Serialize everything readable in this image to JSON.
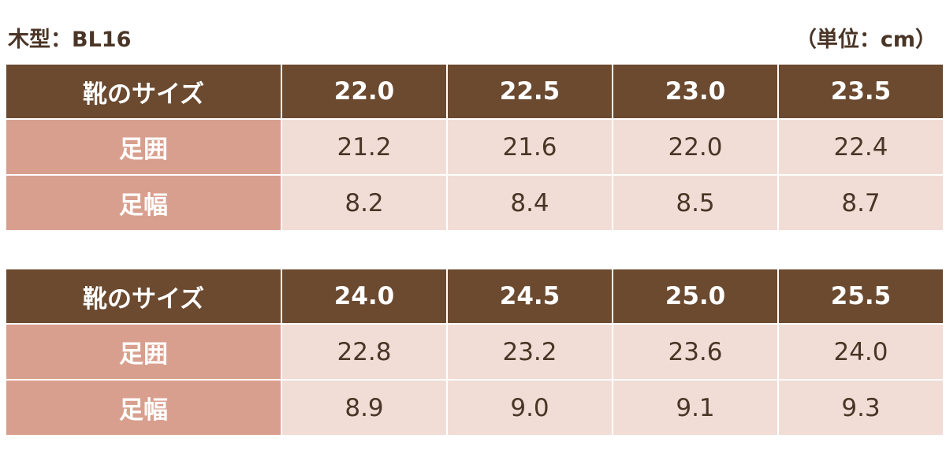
{
  "header": {
    "title": "木型：BL16",
    "unit": "（単位：cm）"
  },
  "colors": {
    "header_bg": "#6b4a30",
    "label_bg": "#d99f8e",
    "cell_bg": "#f1ddd6",
    "text": "#4a3526"
  },
  "tables": [
    {
      "header_label": "靴のサイズ",
      "sizes": [
        "22.0",
        "22.5",
        "23.0",
        "23.5"
      ],
      "rows": [
        {
          "label": "足囲",
          "values": [
            "21.2",
            "21.6",
            "22.0",
            "22.4"
          ]
        },
        {
          "label": "足幅",
          "values": [
            "8.2",
            "8.4",
            "8.5",
            "8.7"
          ]
        }
      ]
    },
    {
      "header_label": "靴のサイズ",
      "sizes": [
        "24.0",
        "24.5",
        "25.0",
        "25.5"
      ],
      "rows": [
        {
          "label": "足囲",
          "values": [
            "22.8",
            "23.2",
            "23.6",
            "24.0"
          ]
        },
        {
          "label": "足幅",
          "values": [
            "8.9",
            "9.0",
            "9.1",
            "9.3"
          ]
        }
      ]
    }
  ]
}
